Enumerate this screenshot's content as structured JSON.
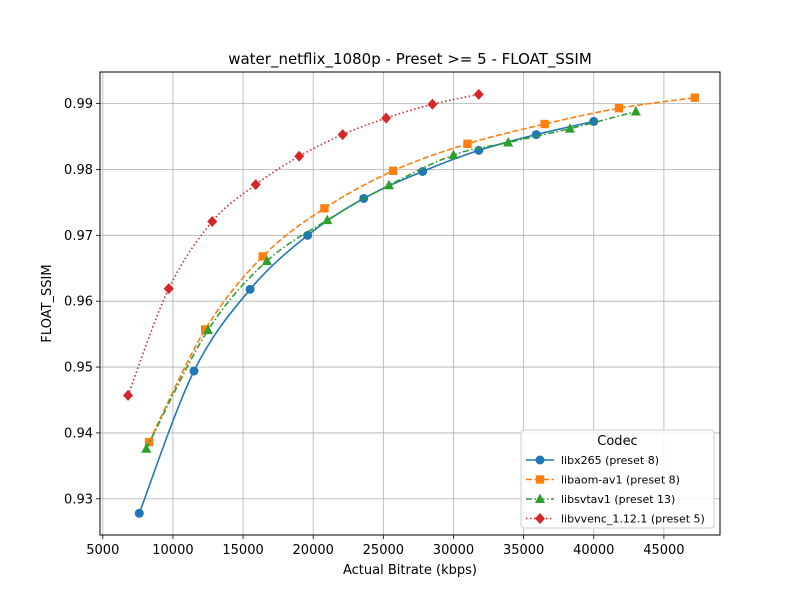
{
  "chart_data": {
    "type": "line",
    "title": "water_netflix_1080p - Preset >= 5 - FLOAT_SSIM",
    "xlabel": "Actual Bitrate (kbps)",
    "ylabel": "FLOAT_SSIM",
    "xlim": [
      4800,
      49000
    ],
    "ylim": [
      0.9245,
      0.9948
    ],
    "xticks": [
      5000,
      10000,
      15000,
      20000,
      25000,
      30000,
      35000,
      40000,
      45000
    ],
    "yticks": [
      0.93,
      0.94,
      0.95,
      0.96,
      0.97,
      0.98,
      0.99
    ],
    "grid": true,
    "legend_title": "Codec",
    "legend_position": "lower-right",
    "series": [
      {
        "name": "libx265 (preset 8)",
        "color": "#1f77b4",
        "line_style": "solid",
        "marker": "circle",
        "points": [
          [
            7600,
            0.9278
          ],
          [
            11500,
            0.9494
          ],
          [
            15500,
            0.9618
          ],
          [
            19600,
            0.97
          ],
          [
            23600,
            0.9756
          ],
          [
            27800,
            0.9797
          ],
          [
            31800,
            0.9829
          ],
          [
            35900,
            0.9853
          ],
          [
            40000,
            0.9873
          ]
        ]
      },
      {
        "name": "libaom-av1 (preset 8)",
        "color": "#ff7f0e",
        "line_style": "dashed",
        "marker": "square",
        "points": [
          [
            8300,
            0.9386
          ],
          [
            12300,
            0.9557
          ],
          [
            16400,
            0.9668
          ],
          [
            20800,
            0.9741
          ],
          [
            25700,
            0.9798
          ],
          [
            31000,
            0.9839
          ],
          [
            36500,
            0.9869
          ],
          [
            41800,
            0.9893
          ],
          [
            47200,
            0.9909
          ]
        ]
      },
      {
        "name": "libsvtav1 (preset 13)",
        "color": "#2ca02c",
        "line_style": "dashdot",
        "marker": "triangle",
        "points": [
          [
            8100,
            0.9376
          ],
          [
            12500,
            0.9556
          ],
          [
            16700,
            0.9661
          ],
          [
            21000,
            0.9723
          ],
          [
            25400,
            0.9776
          ],
          [
            30000,
            0.9822
          ],
          [
            33900,
            0.9841
          ],
          [
            38300,
            0.9862
          ],
          [
            43000,
            0.9888
          ]
        ]
      },
      {
        "name": "libvvenc_1.12.1 (preset 5)",
        "color": "#d62728",
        "line_style": "dotted",
        "marker": "diamond",
        "points": [
          [
            6800,
            0.9457
          ],
          [
            9700,
            0.9619
          ],
          [
            12800,
            0.9721
          ],
          [
            15900,
            0.9777
          ],
          [
            19000,
            0.982
          ],
          [
            22100,
            0.9853
          ],
          [
            25200,
            0.9878
          ],
          [
            28500,
            0.9899
          ],
          [
            31800,
            0.9914
          ]
        ]
      }
    ]
  }
}
